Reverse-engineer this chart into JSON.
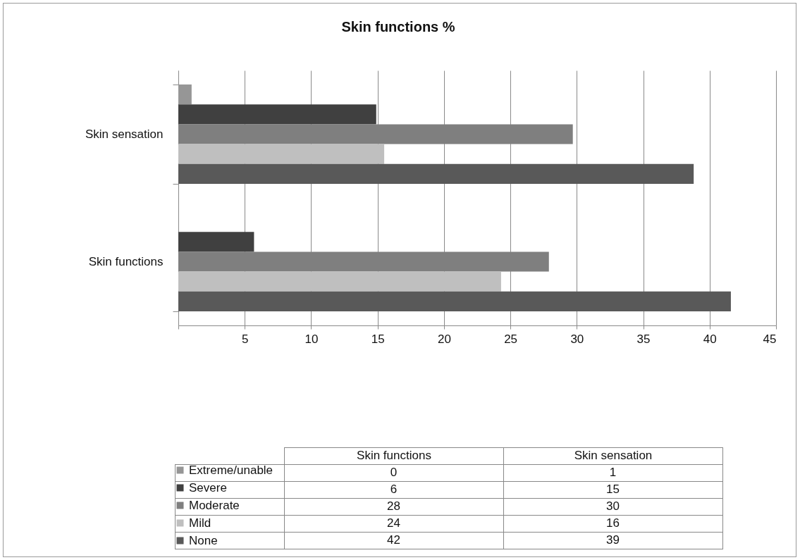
{
  "chart_data": [
    {
      "type": "bar",
      "orientation": "horizontal",
      "title": "Skin functions %",
      "categories": [
        "Skin sensation",
        "Skin functions"
      ],
      "series": [
        {
          "name": "Extreme/unable",
          "color": "#969696",
          "values": [
            1.0,
            0
          ]
        },
        {
          "name": "Severe",
          "color": "#404040",
          "values": [
            14.9,
            5.7
          ]
        },
        {
          "name": "Moderate",
          "color": "#7f7f7f",
          "values": [
            29.7,
            27.9
          ]
        },
        {
          "name": "Mild",
          "color": "#bfbfbf",
          "values": [
            15.5,
            24.3
          ]
        },
        {
          "name": "None",
          "color": "#595959",
          "values": [
            38.8,
            41.6
          ]
        }
      ],
      "xlim": [
        0,
        45
      ],
      "xticks": [
        {
          "value": 0,
          "label": null
        },
        5,
        10,
        15,
        20,
        25,
        30,
        35,
        40,
        45
      ],
      "grid": "x",
      "legend": "bottom"
    },
    {
      "type": "other",
      "categories": [
        "Skin functions",
        "Skin sensation"
      ],
      "series": [
        {
          "values": [
            0,
            1
          ]
        },
        {
          "values": [
            6,
            15
          ]
        },
        {
          "values": [
            28,
            30
          ]
        },
        {
          "values": [
            24,
            16
          ]
        },
        {
          "values": [
            42,
            39
          ]
        }
      ],
      "data_labels": true
    }
  ]
}
